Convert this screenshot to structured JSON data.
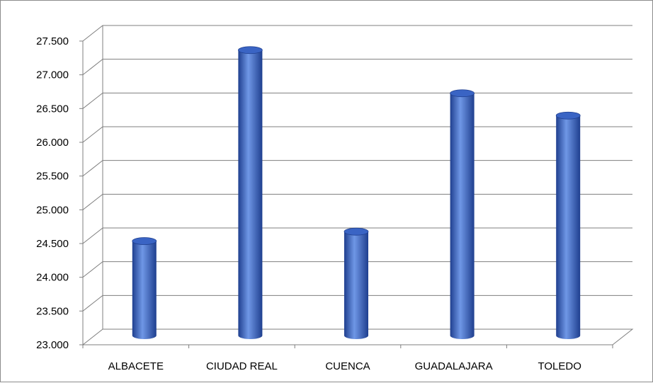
{
  "chart_data": {
    "type": "bar",
    "style": "3d-cylinder",
    "title": "",
    "xlabel": "",
    "ylabel": "",
    "categories": [
      "ALBACETE",
      "CIUDAD REAL",
      "CUENCA",
      "GUADALAJARA",
      "TOLEDO"
    ],
    "values": [
      24400,
      27230,
      24540,
      26590,
      26260
    ],
    "ylim": [
      23000,
      27500
    ],
    "yticks": [
      23000,
      23500,
      24000,
      24500,
      25000,
      25500,
      26000,
      26500,
      27000,
      27500
    ],
    "ytick_labels": [
      "23.000",
      "23.500",
      "24.000",
      "24.500",
      "25.000",
      "25.500",
      "26.000",
      "26.500",
      "27.000",
      "27.500"
    ],
    "grid": true,
    "legend": "none",
    "bar_color": "#3a64c4",
    "bar_dark_color": "#1f3f8f",
    "bar_light_color": "#6f97e6"
  }
}
